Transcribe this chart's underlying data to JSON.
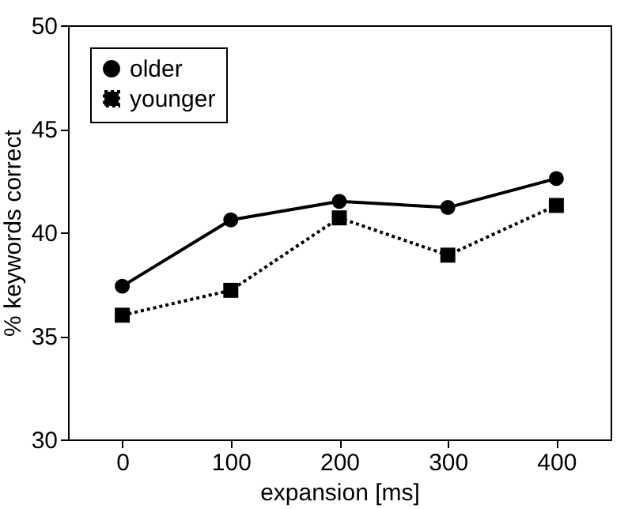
{
  "chart_data": {
    "type": "line",
    "xlabel": "expansion [ms]",
    "ylabel": "% keywords correct",
    "x": [
      0,
      100,
      200,
      300,
      400
    ],
    "series": [
      {
        "name": "older",
        "color": "#000000",
        "marker": "circle",
        "line_style": "solid",
        "values": [
          37.4,
          40.6,
          41.5,
          41.2,
          42.6
        ]
      },
      {
        "name": "younger",
        "color": "#000000",
        "marker": "square",
        "line_style": "dotted",
        "values": [
          36.0,
          37.2,
          40.7,
          38.9,
          41.3
        ]
      }
    ],
    "xlim": [
      -50,
      450
    ],
    "xticks": [
      0,
      100,
      200,
      300,
      400
    ],
    "ylim": [
      30,
      50
    ],
    "yticks": [
      30,
      35,
      40,
      45,
      50
    ],
    "grid": false,
    "legend": "top left"
  }
}
